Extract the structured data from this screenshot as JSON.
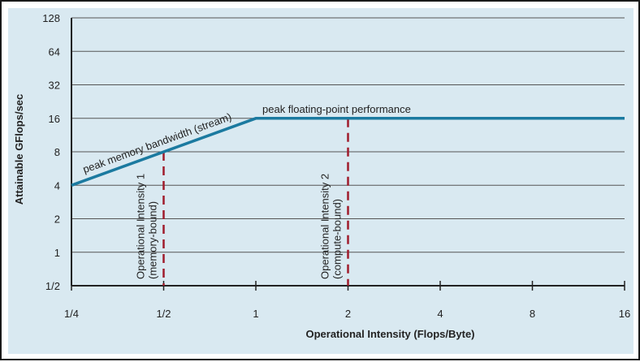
{
  "chart_data": {
    "type": "line",
    "title": "",
    "xlabel": "Operational Intensity (Flops/Byte)",
    "ylabel": "Attainable GFlops/sec",
    "x_scale": "log2",
    "y_scale": "log2",
    "xlim": [
      0.25,
      16
    ],
    "ylim": [
      0.5,
      128
    ],
    "x_ticks": [
      0.25,
      0.5,
      1,
      2,
      4,
      8,
      16
    ],
    "x_tick_labels": [
      "1/4",
      "1/2",
      "1",
      "2",
      "4",
      "8",
      "16"
    ],
    "y_ticks": [
      0.5,
      1,
      2,
      4,
      8,
      16,
      32,
      64,
      128
    ],
    "y_tick_labels": [
      "1/2",
      "1",
      "2",
      "4",
      "8",
      "16",
      "32",
      "64",
      "128"
    ],
    "grid": "horizontal",
    "series": [
      {
        "x": [
          0.25,
          1,
          16
        ],
        "y": [
          4,
          16,
          16
        ],
        "color": "#1b7aa0"
      }
    ],
    "line_labels": [
      {
        "text": "peak memory bandwidth (stream)"
      },
      {
        "text": "peak floating-point performance"
      }
    ],
    "vertical_markers": [
      {
        "x": 0.5,
        "y_top": 8,
        "color": "#a01c2c",
        "style": "dashed",
        "label_lines": [
          "Operational Intensity 1",
          "(memory-bound)"
        ]
      },
      {
        "x": 2,
        "y_top": 16,
        "color": "#a01c2c",
        "style": "dashed",
        "label_lines": [
          "Operational Intensity 2",
          "(compute-bound)"
        ]
      }
    ]
  },
  "colors": {
    "background": "#d9e9f1",
    "grid": "#555555",
    "axis": "#222222",
    "roofline": "#1b7aa0",
    "marker": "#a01c2c"
  }
}
